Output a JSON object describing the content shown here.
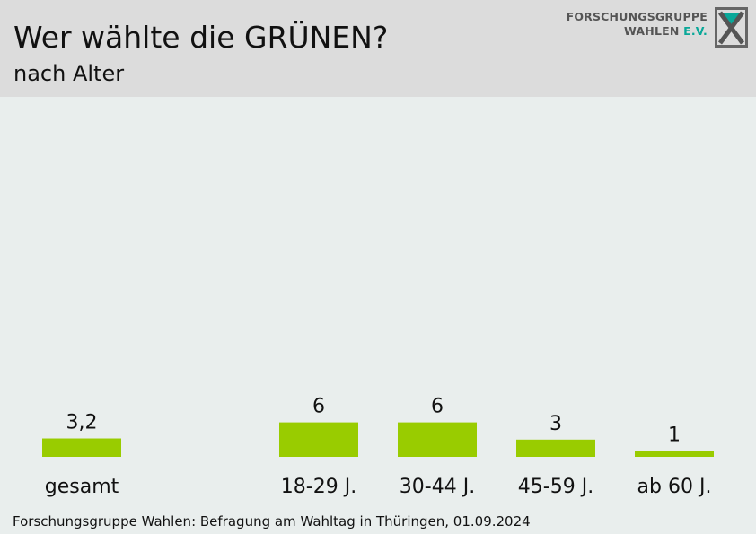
{
  "header": {
    "title": "Wer wählte die GRÜNEN?",
    "subtitle": "nach Alter",
    "logo": {
      "line1": "FORSCHUNGSGRUPPE",
      "line2": "WAHLEN",
      "line2_suffix": "E.V.",
      "icon": "forschungsgruppe-wahlen-logo-icon"
    }
  },
  "chart_data": {
    "type": "bar",
    "title": "Wer wählte die GRÜNEN?",
    "subtitle": "nach Alter",
    "categories": [
      "gesamt",
      "18-29 J.",
      "30-44 J.",
      "45-59 J.",
      "ab 60 J."
    ],
    "values": [
      3.2,
      6,
      6,
      3,
      1
    ],
    "value_labels": [
      "3,2",
      "6",
      "6",
      "3",
      "1"
    ],
    "bar_color": "#99cc00",
    "ylim": [
      0,
      45
    ],
    "grid": false,
    "legend": "none"
  },
  "footer": {
    "source": "Forschungsgruppe Wahlen: Befragung am Wahltag in Thüringen, 01.09.2024"
  },
  "colors": {
    "header_bg": "#dcdcdc",
    "page_bg": "#e9eeed",
    "bar": "#99cc00",
    "logo_accent": "#0aa899"
  }
}
